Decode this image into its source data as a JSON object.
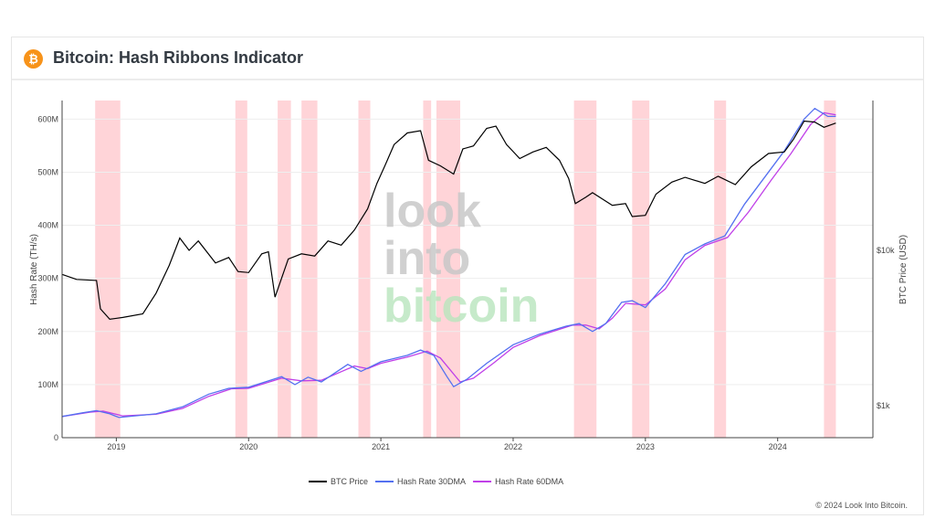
{
  "header": {
    "title": "Bitcoin: Hash Ribbons Indicator",
    "icon": "bitcoin-icon",
    "icon_glyph": "₿"
  },
  "footer": {
    "copyright": "© 2024 Look Into Bitcoin."
  },
  "watermark": [
    "look",
    "into",
    "bitcoin"
  ],
  "chart_data": {
    "type": "line",
    "title": "",
    "ylabel": "Hash Rate (TH/s)",
    "y2label": "BTC Price (USD)",
    "xlim": [
      2018.59,
      2024.72
    ],
    "ylim": [
      0,
      635000000
    ],
    "y2_scale": "log",
    "x_ticks": [
      "2019",
      "2020",
      "2021",
      "2022",
      "2023",
      "2024"
    ],
    "y_ticks": [
      {
        "v": 0,
        "label": "0"
      },
      {
        "v": 100000000,
        "label": "100M"
      },
      {
        "v": 200000000,
        "label": "200M"
      },
      {
        "v": 300000000,
        "label": "300M"
      },
      {
        "v": 400000000,
        "label": "400M"
      },
      {
        "v": 500000000,
        "label": "500M"
      },
      {
        "v": 600000000,
        "label": "600M"
      }
    ],
    "y2_ticks": [
      {
        "v": 1000,
        "label": "$1k"
      },
      {
        "v": 10000,
        "label": "$10k"
      }
    ],
    "grid": true,
    "legend_placement": "bottom",
    "band_color": "#ffd4d8",
    "bands": [
      [
        2018.84,
        2019.03
      ],
      [
        2019.9,
        2019.99
      ],
      [
        2020.22,
        2020.32
      ],
      [
        2020.4,
        2020.52
      ],
      [
        2020.83,
        2020.92
      ],
      [
        2021.32,
        2021.38
      ],
      [
        2021.42,
        2021.6
      ],
      [
        2022.46,
        2022.63
      ],
      [
        2022.9,
        2023.03
      ],
      [
        2023.52,
        2023.61
      ],
      [
        2024.35,
        2024.44
      ]
    ],
    "series": [
      {
        "name": "BTC Price",
        "color": "#000000",
        "axis": "y2",
        "points": [
          [
            2018.59,
            7000
          ],
          [
            2018.7,
            6500
          ],
          [
            2018.85,
            6400
          ],
          [
            2018.88,
            4200
          ],
          [
            2018.95,
            3600
          ],
          [
            2019.05,
            3700
          ],
          [
            2019.2,
            3900
          ],
          [
            2019.3,
            5300
          ],
          [
            2019.4,
            8000
          ],
          [
            2019.48,
            12000
          ],
          [
            2019.55,
            10000
          ],
          [
            2019.62,
            11500
          ],
          [
            2019.75,
            8300
          ],
          [
            2019.85,
            9000
          ],
          [
            2019.92,
            7300
          ],
          [
            2020.0,
            7200
          ],
          [
            2020.1,
            9500
          ],
          [
            2020.15,
            9800
          ],
          [
            2020.2,
            5000
          ],
          [
            2020.3,
            8800
          ],
          [
            2020.4,
            9500
          ],
          [
            2020.5,
            9200
          ],
          [
            2020.6,
            11500
          ],
          [
            2020.7,
            10800
          ],
          [
            2020.8,
            13500
          ],
          [
            2020.9,
            18500
          ],
          [
            2020.97,
            27000
          ],
          [
            2021.03,
            35000
          ],
          [
            2021.1,
            48000
          ],
          [
            2021.2,
            57000
          ],
          [
            2021.3,
            59000
          ],
          [
            2021.36,
            38000
          ],
          [
            2021.45,
            35000
          ],
          [
            2021.55,
            31000
          ],
          [
            2021.62,
            45000
          ],
          [
            2021.7,
            47000
          ],
          [
            2021.8,
            61000
          ],
          [
            2021.87,
            63000
          ],
          [
            2021.95,
            48000
          ],
          [
            2022.05,
            39000
          ],
          [
            2022.15,
            43000
          ],
          [
            2022.25,
            46000
          ],
          [
            2022.35,
            38000
          ],
          [
            2022.42,
            29000
          ],
          [
            2022.47,
            20000
          ],
          [
            2022.55,
            22000
          ],
          [
            2022.6,
            23500
          ],
          [
            2022.75,
            19500
          ],
          [
            2022.85,
            20000
          ],
          [
            2022.9,
            16500
          ],
          [
            2023.0,
            16800
          ],
          [
            2023.08,
            23000
          ],
          [
            2023.2,
            27500
          ],
          [
            2023.3,
            29500
          ],
          [
            2023.45,
            27000
          ],
          [
            2023.55,
            30000
          ],
          [
            2023.68,
            26500
          ],
          [
            2023.8,
            34500
          ],
          [
            2023.93,
            42000
          ],
          [
            2024.05,
            43000
          ],
          [
            2024.12,
            52000
          ],
          [
            2024.2,
            68000
          ],
          [
            2024.28,
            67000
          ],
          [
            2024.35,
            62000
          ],
          [
            2024.44,
            66000
          ]
        ]
      },
      {
        "name": "Hash Rate 30DMA",
        "color": "#5470f0",
        "axis": "y",
        "points": [
          [
            2018.59,
            40000000
          ],
          [
            2018.75,
            47000000
          ],
          [
            2018.85,
            51000000
          ],
          [
            2018.95,
            45000000
          ],
          [
            2019.02,
            38000000
          ],
          [
            2019.3,
            45000000
          ],
          [
            2019.5,
            58000000
          ],
          [
            2019.7,
            82000000
          ],
          [
            2019.85,
            93000000
          ],
          [
            2020.0,
            95000000
          ],
          [
            2020.25,
            115000000
          ],
          [
            2020.35,
            100000000
          ],
          [
            2020.45,
            114000000
          ],
          [
            2020.55,
            105000000
          ],
          [
            2020.75,
            138000000
          ],
          [
            2020.85,
            125000000
          ],
          [
            2021.0,
            143000000
          ],
          [
            2021.2,
            155000000
          ],
          [
            2021.3,
            165000000
          ],
          [
            2021.4,
            155000000
          ],
          [
            2021.5,
            115000000
          ],
          [
            2021.55,
            96000000
          ],
          [
            2021.65,
            110000000
          ],
          [
            2021.8,
            140000000
          ],
          [
            2022.0,
            175000000
          ],
          [
            2022.2,
            195000000
          ],
          [
            2022.4,
            210000000
          ],
          [
            2022.5,
            215000000
          ],
          [
            2022.6,
            200000000
          ],
          [
            2022.7,
            215000000
          ],
          [
            2022.82,
            255000000
          ],
          [
            2022.9,
            258000000
          ],
          [
            2023.0,
            245000000
          ],
          [
            2023.15,
            290000000
          ],
          [
            2023.3,
            345000000
          ],
          [
            2023.45,
            365000000
          ],
          [
            2023.6,
            380000000
          ],
          [
            2023.75,
            440000000
          ],
          [
            2023.9,
            490000000
          ],
          [
            2024.05,
            540000000
          ],
          [
            2024.2,
            600000000
          ],
          [
            2024.28,
            620000000
          ],
          [
            2024.38,
            605000000
          ],
          [
            2024.44,
            605000000
          ]
        ]
      },
      {
        "name": "Hash Rate 60DMA",
        "color": "#c040e8",
        "axis": "y",
        "points": [
          [
            2018.59,
            40000000
          ],
          [
            2018.8,
            48000000
          ],
          [
            2018.9,
            50000000
          ],
          [
            2019.05,
            41000000
          ],
          [
            2019.3,
            44000000
          ],
          [
            2019.5,
            55000000
          ],
          [
            2019.7,
            78000000
          ],
          [
            2019.87,
            92000000
          ],
          [
            2020.0,
            93000000
          ],
          [
            2020.25,
            112000000
          ],
          [
            2020.4,
            107000000
          ],
          [
            2020.55,
            108000000
          ],
          [
            2020.8,
            135000000
          ],
          [
            2020.9,
            130000000
          ],
          [
            2021.0,
            140000000
          ],
          [
            2021.2,
            152000000
          ],
          [
            2021.35,
            163000000
          ],
          [
            2021.45,
            150000000
          ],
          [
            2021.6,
            105000000
          ],
          [
            2021.7,
            112000000
          ],
          [
            2021.85,
            140000000
          ],
          [
            2022.0,
            170000000
          ],
          [
            2022.2,
            192000000
          ],
          [
            2022.45,
            212000000
          ],
          [
            2022.55,
            212000000
          ],
          [
            2022.65,
            205000000
          ],
          [
            2022.75,
            225000000
          ],
          [
            2022.85,
            253000000
          ],
          [
            2023.0,
            250000000
          ],
          [
            2023.15,
            280000000
          ],
          [
            2023.3,
            335000000
          ],
          [
            2023.45,
            362000000
          ],
          [
            2023.62,
            377000000
          ],
          [
            2023.78,
            425000000
          ],
          [
            2023.95,
            485000000
          ],
          [
            2024.1,
            535000000
          ],
          [
            2024.25,
            590000000
          ],
          [
            2024.35,
            612000000
          ],
          [
            2024.44,
            608000000
          ]
        ]
      }
    ]
  }
}
